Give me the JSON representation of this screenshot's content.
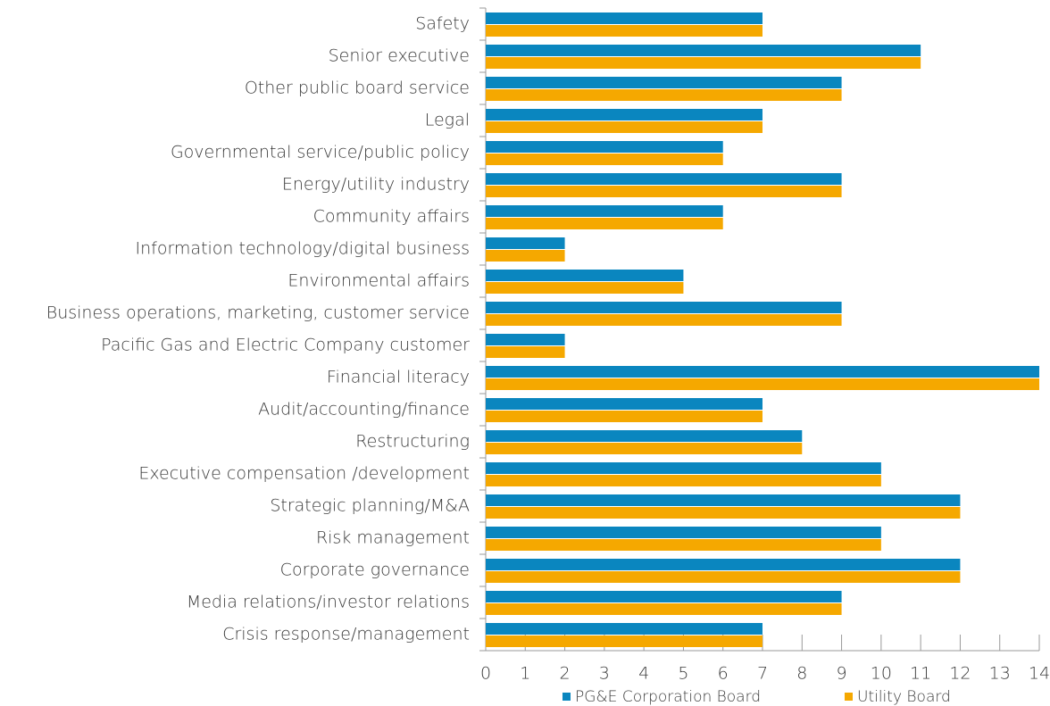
{
  "chart_data": {
    "type": "bar",
    "orientation": "horizontal",
    "categories": [
      "Safety",
      "Senior executive",
      "Other public board service",
      "Legal",
      "Governmental service/public policy",
      "Energy/utility industry",
      "Community affairs",
      "Information technology/digital business",
      "Environmental affairs",
      "Business operations, marketing, customer service",
      "Pacific Gas and Electric Company customer",
      "Financial literacy",
      "Audit/accounting/finance",
      "Restructuring",
      "Executive compensation /development",
      "Strategic planning/M&A",
      "Risk management",
      "Corporate governance",
      "Media relations/investor relations",
      "Crisis response/management"
    ],
    "series": [
      {
        "name": "PG&E Corporation Board",
        "color": "#0a86bf",
        "values": [
          7,
          11,
          9,
          7,
          6,
          9,
          6,
          2,
          5,
          9,
          2,
          14,
          7,
          8,
          10,
          12,
          10,
          12,
          9,
          7
        ]
      },
      {
        "name": "Utility Board",
        "color": "#f5a800",
        "values": [
          7,
          11,
          9,
          7,
          6,
          9,
          6,
          2,
          5,
          9,
          2,
          14,
          7,
          8,
          10,
          12,
          10,
          12,
          9,
          7
        ]
      }
    ],
    "xlim": [
      0,
      14
    ],
    "xticks": [
      0,
      1,
      2,
      3,
      4,
      5,
      6,
      7,
      8,
      9,
      10,
      11,
      12,
      13,
      14
    ],
    "legend": "bottom"
  }
}
